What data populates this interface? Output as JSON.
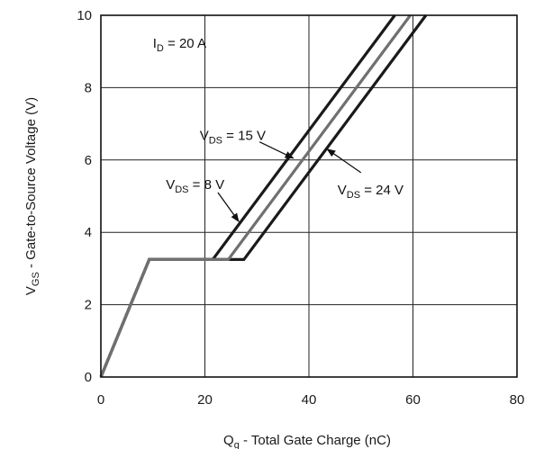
{
  "chart_data": {
    "type": "line",
    "xlabel": {
      "main": "Q",
      "sub": "g",
      "rest": " - Total Gate Charge (nC)"
    },
    "ylabel": {
      "main": "V",
      "sub": "GS",
      "rest": " - Gate-to-Source Voltage (V)"
    },
    "xlim": [
      0,
      80
    ],
    "ylim": [
      0,
      10
    ],
    "xticks": [
      0,
      20,
      40,
      60,
      80
    ],
    "yticks": [
      0,
      2,
      4,
      6,
      8,
      10
    ],
    "grid": true,
    "series": [
      {
        "name": "V_DS = 8 V",
        "color": "#1a1a1a",
        "points": [
          [
            0,
            0
          ],
          [
            9.3,
            3.25
          ],
          [
            21.5,
            3.25
          ],
          [
            56.5,
            10
          ]
        ]
      },
      {
        "name": "V_DS = 15 V",
        "color": "#707070",
        "points": [
          [
            0,
            0
          ],
          [
            9.3,
            3.25
          ],
          [
            24.5,
            3.25
          ],
          [
            59.5,
            10
          ]
        ]
      },
      {
        "name": "V_DS = 24 V",
        "color": "#1a1a1a",
        "points": [
          [
            0,
            0
          ],
          [
            9.3,
            3.25
          ],
          [
            27.5,
            3.25
          ],
          [
            62.5,
            10
          ]
        ]
      }
    ],
    "annotations": [
      {
        "id": "id",
        "main": "I",
        "sub": "D",
        "rest": " = 20 A",
        "pos": [
          10,
          9.1
        ]
      },
      {
        "id": "vds8",
        "main": "V",
        "sub": "DS",
        "rest": " = 8 V",
        "pos": [
          12.5,
          5.2
        ],
        "arrow_from": [
          22.5,
          5.1
        ],
        "arrow_to": [
          26.5,
          4.3
        ]
      },
      {
        "id": "vds15",
        "main": "V",
        "sub": "DS",
        "rest": " = 15 V",
        "pos": [
          19,
          6.55
        ],
        "arrow_from": [
          30.5,
          6.5
        ],
        "arrow_to": [
          37,
          6.05
        ]
      },
      {
        "id": "vds24",
        "main": "V",
        "sub": "DS",
        "rest": " = 24 V",
        "pos": [
          45.5,
          5.05
        ],
        "arrow_from": [
          50,
          5.65
        ],
        "arrow_to": [
          43.5,
          6.3
        ]
      }
    ]
  }
}
